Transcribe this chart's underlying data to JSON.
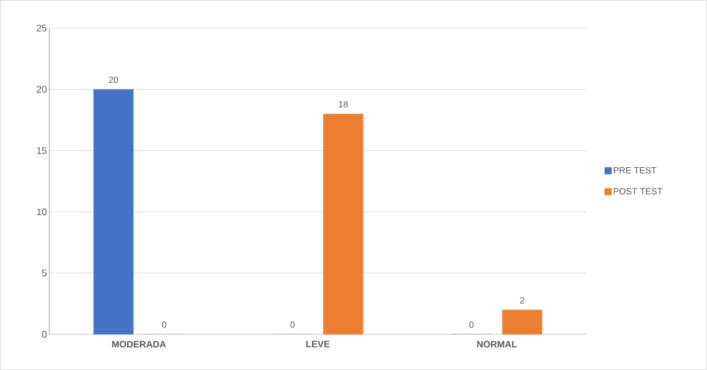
{
  "chart_data": {
    "type": "bar",
    "categories": [
      "MODERADA",
      "LEVE",
      "NORMAL"
    ],
    "series": [
      {
        "name": "PRE TEST",
        "color": "#4472c4",
        "values": [
          20,
          0,
          0
        ]
      },
      {
        "name": "POST TEST",
        "color": "#ed7d31",
        "values": [
          0,
          18,
          2
        ]
      }
    ],
    "ylim": [
      0,
      25
    ],
    "yticks": [
      0,
      5,
      10,
      15,
      20,
      25
    ],
    "grid": "y",
    "legend": "right",
    "data_labels": true
  }
}
